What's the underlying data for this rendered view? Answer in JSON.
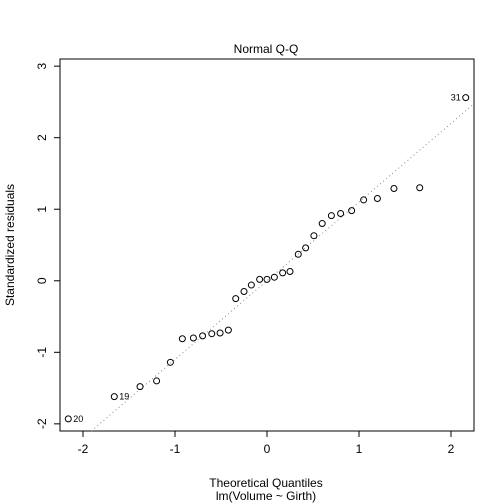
{
  "chart_data": {
    "type": "scatter",
    "title": "Normal Q-Q",
    "xlabel": "Theoretical Quantiles",
    "sublabel": "lm(Volume ~ Girth)",
    "ylabel": "Standardized residuals",
    "xlim": [
      -2.25,
      2.25
    ],
    "ylim": [
      -2.1,
      3.1
    ],
    "x_ticks": [
      -2,
      -1,
      0,
      1,
      2
    ],
    "x_tick_labels": [
      "-2",
      "-1",
      "0",
      "1",
      "2"
    ],
    "y_ticks": [
      -2,
      -1,
      0,
      1,
      2,
      3
    ],
    "y_tick_labels": [
      "-2",
      "-1",
      "0",
      "1",
      "2",
      "3"
    ],
    "grid": false,
    "points": [
      {
        "x": -2.16,
        "y": -1.93,
        "label": "20"
      },
      {
        "x": -1.66,
        "y": -1.62,
        "label": "19"
      },
      {
        "x": -1.38,
        "y": -1.48
      },
      {
        "x": -1.2,
        "y": -1.4
      },
      {
        "x": -1.05,
        "y": -1.14
      },
      {
        "x": -0.92,
        "y": -0.81
      },
      {
        "x": -0.8,
        "y": -0.8
      },
      {
        "x": -0.7,
        "y": -0.77
      },
      {
        "x": -0.6,
        "y": -0.74
      },
      {
        "x": -0.51,
        "y": -0.73
      },
      {
        "x": -0.42,
        "y": -0.69
      },
      {
        "x": -0.34,
        "y": -0.25
      },
      {
        "x": -0.25,
        "y": -0.15
      },
      {
        "x": -0.17,
        "y": -0.06
      },
      {
        "x": -0.08,
        "y": 0.02
      },
      {
        "x": 0.0,
        "y": 0.02
      },
      {
        "x": 0.08,
        "y": 0.05
      },
      {
        "x": 0.17,
        "y": 0.11
      },
      {
        "x": 0.25,
        "y": 0.13
      },
      {
        "x": 0.34,
        "y": 0.37
      },
      {
        "x": 0.42,
        "y": 0.46
      },
      {
        "x": 0.51,
        "y": 0.63
      },
      {
        "x": 0.6,
        "y": 0.8
      },
      {
        "x": 0.7,
        "y": 0.91
      },
      {
        "x": 0.8,
        "y": 0.94
      },
      {
        "x": 0.92,
        "y": 0.98
      },
      {
        "x": 1.05,
        "y": 1.13
      },
      {
        "x": 1.2,
        "y": 1.15
      },
      {
        "x": 1.38,
        "y": 1.29
      },
      {
        "x": 1.66,
        "y": 1.3
      },
      {
        "x": 2.16,
        "y": 2.56,
        "label": "31"
      }
    ],
    "reference_line": {
      "intercept": 0.0,
      "slope": 1.1
    }
  }
}
